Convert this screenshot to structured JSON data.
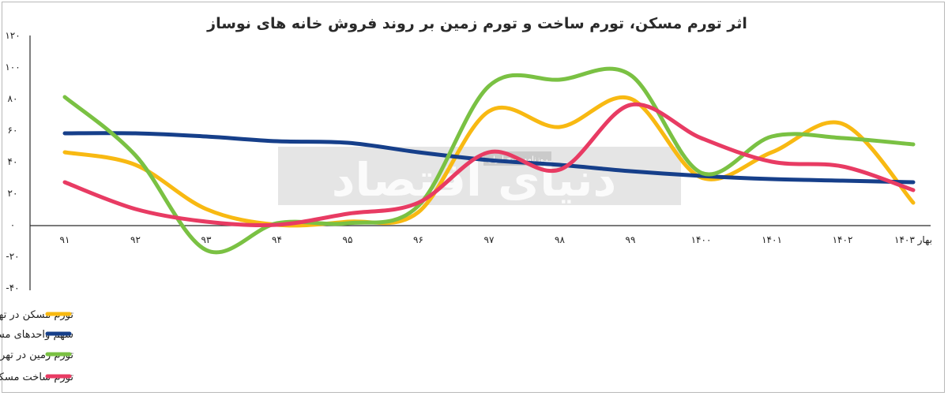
{
  "chart_data": {
    "type": "line",
    "title": "اثر تورم مسکن، تورم ساخت و تورم زمین بر روند فروش خانه های نوساز",
    "categories": [
      "۹۱",
      "۹۲",
      "۹۳",
      "۹۴",
      "۹۵",
      "۹۶",
      "۹۷",
      "۹۸",
      "۹۹",
      "۱۴۰۰",
      "۱۴۰۱",
      "۱۴۰۲",
      "بهار ۱۴۰۳"
    ],
    "y_tick_labels": [
      "۱۲۰",
      "۱۰۰",
      "۸۰",
      "۶۰",
      "۴۰",
      "۲۰",
      "۰",
      "-۲۰",
      "-۴۰"
    ],
    "y_ticks": [
      120,
      100,
      80,
      60,
      40,
      20,
      0,
      -20,
      -40
    ],
    "ylim": [
      -40,
      120
    ],
    "grid": false,
    "legend_position": "bottom",
    "series": [
      {
        "name": "تورم مسکن در تهران-نرخ رشد نقطه ای قیمت به درصد",
        "color": "#f8b912",
        "values": [
          46,
          38,
          10,
          0,
          2,
          8,
          72,
          62,
          80,
          30,
          46,
          64,
          14
        ]
      },
      {
        "name": "سهم واحدهای مسکونی نوساز از معاملات خرید-درصد",
        "color": "#163f8a",
        "values": [
          58,
          58,
          56,
          53,
          52,
          46,
          41,
          38,
          34,
          31,
          29,
          28,
          27
        ]
      },
      {
        "name": "تورم زمین در تهران-نرخ رشد نقطه ای قیمت به درصد",
        "color": "#7ac143",
        "values": [
          81,
          44,
          -16,
          1,
          1,
          12,
          88,
          92,
          95,
          33,
          56,
          55,
          51
        ]
      },
      {
        "name": "تورم ساخت مسکن در تهران ( درصد تغییرات شاخص قیمت مصالح ساختمانی و خدمات نسبت به مدت مشابه سال قبل)",
        "color": "#e83b63",
        "values": [
          27,
          10,
          2,
          0,
          7,
          14,
          46,
          35,
          76,
          55,
          40,
          37,
          22
        ]
      }
    ]
  },
  "watermark": {
    "brand_text": "دنیای اقتصاد",
    "small_text": "روزنامه صبح ایران"
  }
}
